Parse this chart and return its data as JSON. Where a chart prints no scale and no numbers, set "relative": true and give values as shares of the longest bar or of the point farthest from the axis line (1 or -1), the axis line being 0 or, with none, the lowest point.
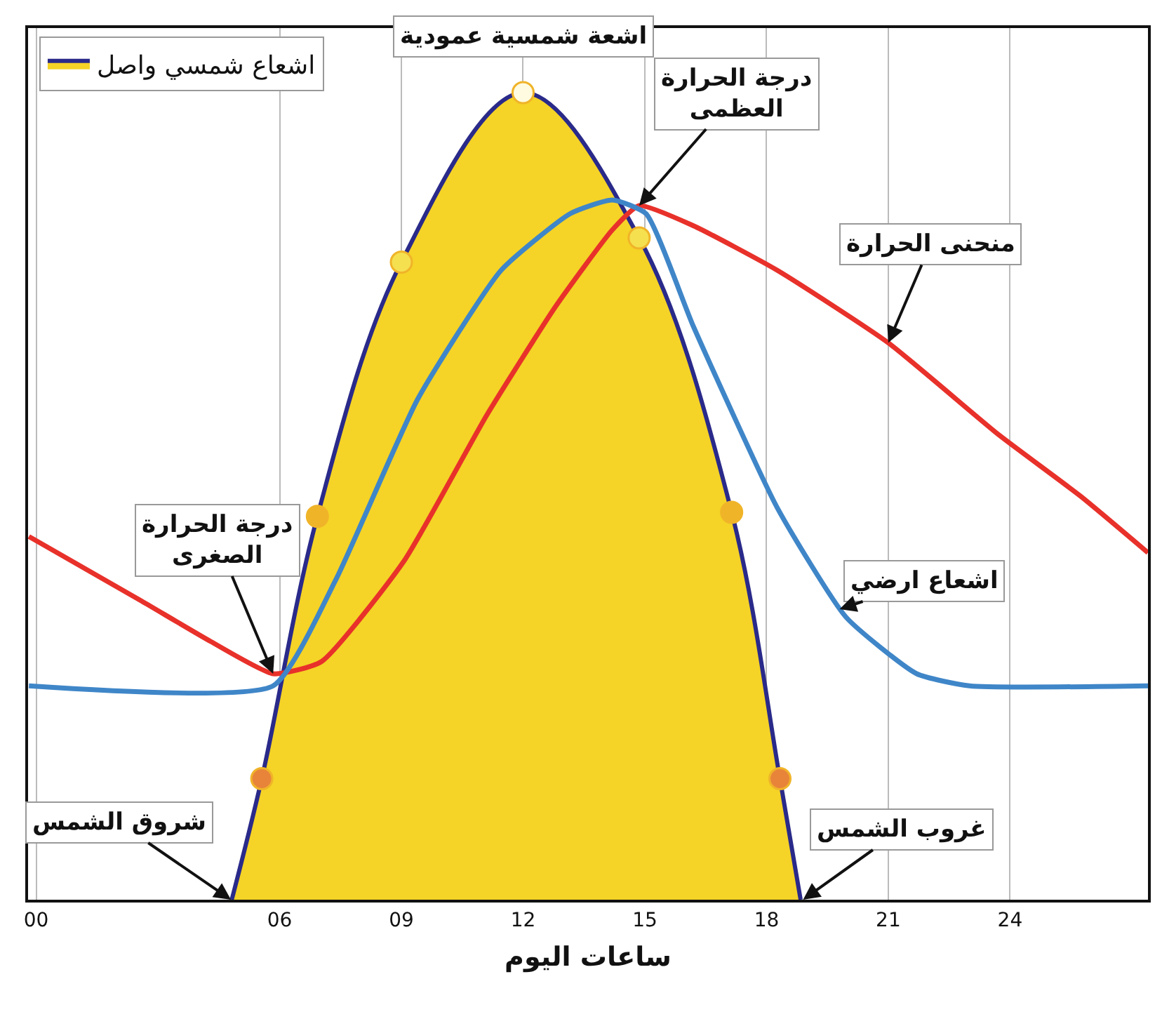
{
  "chart_data": {
    "type": "line",
    "relative": true,
    "xlabel": "ساعات اليوم",
    "xlim": [
      -0.2,
      27.4
    ],
    "xticks": [
      {
        "value": 0,
        "label": "00"
      },
      {
        "value": 6,
        "label": "06"
      },
      {
        "value": 9,
        "label": "09"
      },
      {
        "value": 12,
        "label": "12"
      },
      {
        "value": 15,
        "label": "15"
      },
      {
        "value": 18,
        "label": "18"
      },
      {
        "value": 21,
        "label": "21"
      },
      {
        "value": 24,
        "label": "24"
      }
    ],
    "grid": "x",
    "legend": "top left",
    "line_style": "solid",
    "series": [
      {
        "type": "area",
        "name": "اشعاع شمسي واصل",
        "color": "#f5d327",
        "x": [
          4.82,
          5.56,
          6.93,
          9,
          12,
          14.86,
          17.14,
          18.33,
          18.84
        ],
        "values": [
          0,
          0.15,
          0.475,
          0.79,
          1,
          0.82,
          0.48,
          0.15,
          0
        ]
      },
      {
        "type": "scatter",
        "marker": "circle",
        "color": "#f0b429",
        "colors": [
          "#e8843a",
          "#f0b429",
          "#f5e050",
          "#fffbe0",
          "#f5e050",
          "#f0b429",
          "#e8843a"
        ],
        "x": [
          5.56,
          6.93,
          9,
          12,
          14.86,
          17.14,
          18.33
        ],
        "values": [
          0.15,
          0.475,
          0.79,
          1,
          0.82,
          0.48,
          0.15
        ]
      },
      {
        "color": "#e8312a",
        "x": [
          -0.18,
          2.6,
          4.3,
          5.84,
          7.03,
          9.07,
          11.1,
          12.8,
          14.2,
          14.86,
          16.2,
          18.26,
          21,
          23.7,
          25.74,
          27.4
        ],
        "values": [
          0.45,
          0.37,
          0.32,
          0.28,
          0.295,
          0.42,
          0.6,
          0.735,
          0.83,
          0.86,
          0.835,
          0.78,
          0.69,
          0.577,
          0.5,
          0.43
        ]
      },
      {
        "color": "#3f86c8",
        "x": [
          -0.18,
          5.84,
          7.38,
          9.4,
          11.46,
          13.16,
          14.2,
          15.03,
          16.2,
          18.26,
          19.96,
          21.7,
          23,
          27.4
        ],
        "values": [
          0.265,
          0.265,
          0.396,
          0.62,
          0.78,
          0.85,
          0.867,
          0.85,
          0.71,
          0.486,
          0.35,
          0.28,
          0.265,
          0.265
        ]
      }
    ],
    "annotations": [
      {
        "text": "اشعة شمسية عمودية",
        "x": 12,
        "y": 1
      },
      {
        "text": "درجة الحرارة\nالعظمى",
        "x": 14.86,
        "y": 0.86
      },
      {
        "text": "منحنى الحرارة",
        "x": 21,
        "y": 0.69
      },
      {
        "text": "اشعاع ارضي",
        "x": 19.8,
        "y": 0.36
      },
      {
        "text": "درجة الحرارة\nالصغرى",
        "x": 5.84,
        "y": 0.28
      },
      {
        "text": "شروق الشمس",
        "x": 4.8,
        "y": 0
      },
      {
        "text": "غروب الشمس",
        "x": 18.9,
        "y": 0
      }
    ]
  }
}
